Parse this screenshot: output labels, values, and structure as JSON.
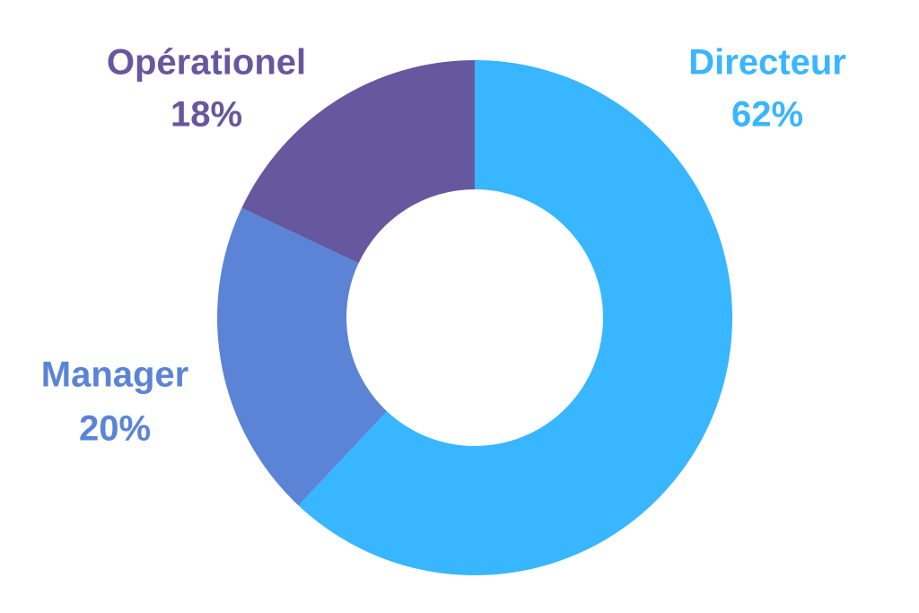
{
  "chart_data": {
    "type": "pie",
    "categories": [
      "Directeur",
      "Manager",
      "Opérationel"
    ],
    "values": [
      62,
      20,
      18
    ],
    "value_labels": [
      "62%",
      "20%",
      "18%"
    ],
    "colors": [
      "#38b6ff",
      "#5b84d6",
      "#65589e"
    ]
  }
}
